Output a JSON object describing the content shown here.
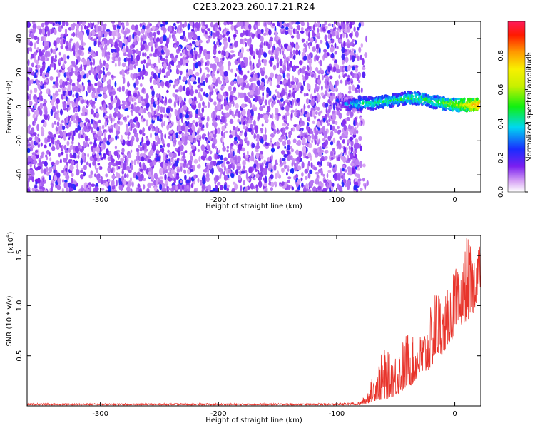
{
  "title": "C2E3.2023.260.17.21.R24",
  "chart_data": [
    {
      "type": "heatmap",
      "xlabel": "Height of straight line (km)",
      "ylabel": "Frequency (Hz)",
      "xlim": [
        -362,
        22
      ],
      "ylim": [
        -50,
        50
      ],
      "x_ticks": [
        -300,
        -200,
        -100,
        0
      ],
      "y_ticks": [
        -40,
        -20,
        0,
        20,
        40
      ],
      "colorbar": {
        "label": "Normalized spectral amplitude",
        "range": [
          0,
          1
        ],
        "ticks": [
          0.0,
          0.2,
          0.4,
          0.6,
          0.8
        ]
      },
      "noise_region": {
        "x": [
          -362,
          -85
        ],
        "frequency": [
          -50,
          50
        ],
        "amplitude": [
          0.05,
          0.25
        ]
      },
      "signal_track": {
        "x": [
          -100,
          -90,
          -80,
          -70,
          -60,
          -50,
          -40,
          -30,
          -20,
          -10,
          0,
          10,
          20
        ],
        "frequency": [
          4,
          1,
          2,
          2,
          3,
          4,
          5,
          5,
          3,
          2,
          1,
          1,
          1
        ],
        "amplitude": [
          0.3,
          0.4,
          0.5,
          0.5,
          0.55,
          0.5,
          0.55,
          0.55,
          0.55,
          0.6,
          0.65,
          0.75,
          0.9
        ]
      }
    },
    {
      "type": "line",
      "xlabel": "Height of straight line (km)",
      "ylabel": "SNR (10 * v/v)",
      "y_multiplier": "(x10",
      "y_multiplier_exp": "4",
      "xlim": [
        -362,
        22
      ],
      "ylim": [
        0,
        17000
      ],
      "x_ticks": [
        -300,
        -200,
        -100,
        0
      ],
      "y_ticks": [
        5000,
        10000,
        15000
      ],
      "y_tick_labels": [
        "0.5",
        "1.0",
        "1.5"
      ],
      "line_color": "#e8342b",
      "series": [
        {
          "x": [
            -362,
            -300,
            -200,
            -100,
            -80,
            -75,
            -70,
            -65,
            -60,
            -55,
            -50,
            -45,
            -40,
            -35,
            -30,
            -25,
            -20,
            -15,
            -10,
            -5,
            0,
            5,
            10,
            15,
            20,
            22
          ],
          "envelope_high": [
            250,
            250,
            250,
            250,
            400,
            1200,
            2800,
            4500,
            5800,
            5200,
            5500,
            6500,
            7500,
            6800,
            7000,
            8000,
            10000,
            12500,
            10500,
            12000,
            14000,
            13000,
            17000,
            15500,
            16500,
            16000
          ],
          "envelope_low": [
            80,
            80,
            80,
            80,
            100,
            200,
            400,
            600,
            500,
            800,
            1000,
            1400,
            1800,
            2200,
            3000,
            3200,
            3800,
            5000,
            5200,
            6200,
            7000,
            8000,
            8500,
            9000,
            11000,
            12000
          ]
        }
      ]
    }
  ]
}
